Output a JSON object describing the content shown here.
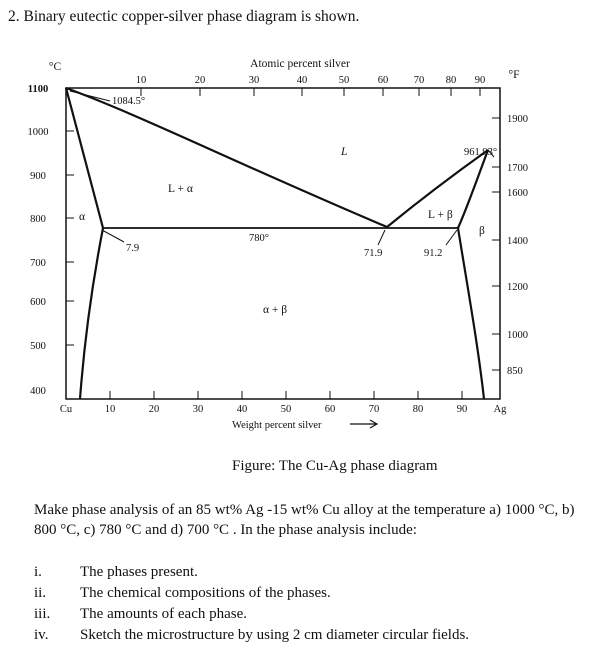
{
  "question": {
    "title": "2. Binary eutectic copper-silver phase diagram is shown."
  },
  "diagram": {
    "top_axis_label": "Atomic percent silver",
    "top_ticks": [
      "10",
      "20",
      "30",
      "40",
      "50",
      "60",
      "70",
      "80",
      "90"
    ],
    "left_unit": "°C",
    "right_unit": "°F",
    "left_ticks": [
      "1100",
      "1000",
      "900",
      "800",
      "700",
      "600",
      "500",
      "400"
    ],
    "right_ticks": [
      "1900",
      "1700",
      "1600",
      "1400",
      "1200",
      "1000",
      "850"
    ],
    "bottom_ticks": [
      "Cu",
      "10",
      "20",
      "30",
      "40",
      "50",
      "60",
      "70",
      "80",
      "90",
      "Ag"
    ],
    "bottom_axis_label": "Weight percent silver",
    "labels": {
      "cu_melt": "1084.5°",
      "ag_melt": "961.93°",
      "liquid": "L",
      "l_alpha": "L + α",
      "l_beta": "L + β",
      "alpha": "α",
      "beta": "β",
      "alpha_beta": "α + β",
      "eutectic_temp": "780°",
      "alpha_max": "7.9",
      "eutectic_comp": "71.9",
      "beta_max": "91.2"
    }
  },
  "figure_caption": "Figure: The Cu-Ag phase diagram",
  "prompt": "Make phase analysis of an 85 wt% Ag -15 wt% Cu alloy at the temperature a) 1000 °C, b) 800 °C, c) 780 °C and d) 700 °C . In the phase analysis include:",
  "items": [
    {
      "num": "i.",
      "text": "The phases present."
    },
    {
      "num": "ii.",
      "text": "The chemical compositions of the phases."
    },
    {
      "num": "iii.",
      "text": "The amounts of each phase."
    },
    {
      "num": "iv.",
      "text": "Sketch the microstructure by using 2 cm diameter circular fields."
    }
  ]
}
